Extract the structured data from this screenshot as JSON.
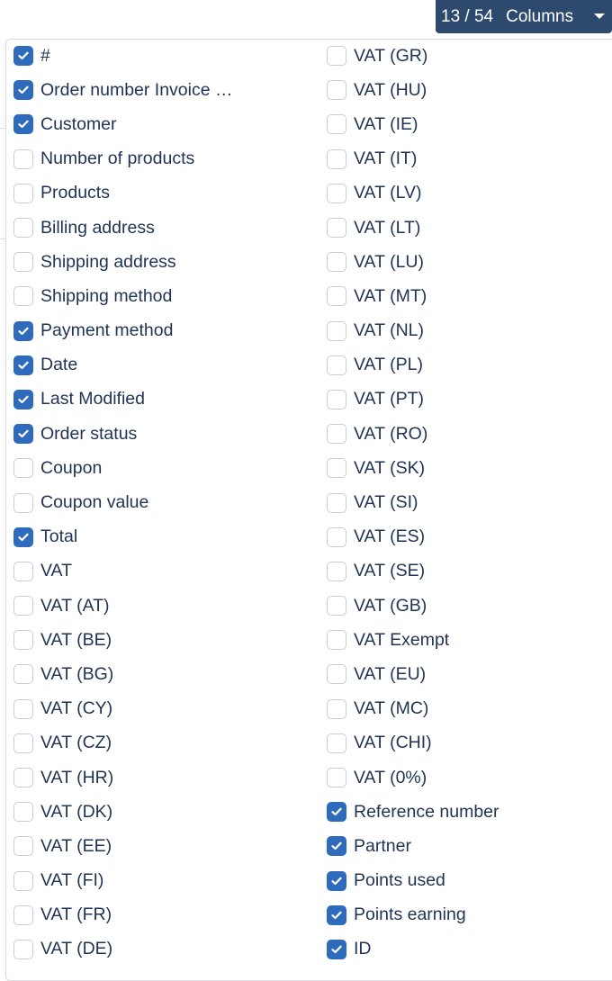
{
  "columns_button": {
    "selected": "13",
    "total": "54",
    "separator": "/",
    "label": "Columns",
    "caret_icon": "caret-down-icon"
  },
  "colors": {
    "checkbox_checked": "#2f6bbd",
    "button_bg": "#2d4a6e",
    "text": "#1f3354"
  },
  "left_column": [
    {
      "label": "#",
      "checked": true
    },
    {
      "label": "Order number Invoice …",
      "checked": true
    },
    {
      "label": "Customer",
      "checked": true
    },
    {
      "label": "Number of products",
      "checked": false
    },
    {
      "label": "Products",
      "checked": false
    },
    {
      "label": "Billing address",
      "checked": false
    },
    {
      "label": "Shipping address",
      "checked": false
    },
    {
      "label": "Shipping method",
      "checked": false
    },
    {
      "label": "Payment method",
      "checked": true
    },
    {
      "label": "Date",
      "checked": true
    },
    {
      "label": "Last Modified",
      "checked": true
    },
    {
      "label": "Order status",
      "checked": true
    },
    {
      "label": "Coupon",
      "checked": false
    },
    {
      "label": "Coupon value",
      "checked": false
    },
    {
      "label": "Total",
      "checked": true
    },
    {
      "label": "VAT",
      "checked": false
    },
    {
      "label": "VAT (AT)",
      "checked": false
    },
    {
      "label": "VAT (BE)",
      "checked": false
    },
    {
      "label": "VAT (BG)",
      "checked": false
    },
    {
      "label": "VAT (CY)",
      "checked": false
    },
    {
      "label": "VAT (CZ)",
      "checked": false
    },
    {
      "label": "VAT (HR)",
      "checked": false
    },
    {
      "label": "VAT (DK)",
      "checked": false
    },
    {
      "label": "VAT (EE)",
      "checked": false
    },
    {
      "label": "VAT (FI)",
      "checked": false
    },
    {
      "label": "VAT (FR)",
      "checked": false
    },
    {
      "label": "VAT (DE)",
      "checked": false
    }
  ],
  "right_column": [
    {
      "label": "VAT (GR)",
      "checked": false
    },
    {
      "label": "VAT (HU)",
      "checked": false
    },
    {
      "label": "VAT (IE)",
      "checked": false
    },
    {
      "label": "VAT (IT)",
      "checked": false
    },
    {
      "label": "VAT (LV)",
      "checked": false
    },
    {
      "label": "VAT (LT)",
      "checked": false
    },
    {
      "label": "VAT (LU)",
      "checked": false
    },
    {
      "label": "VAT (MT)",
      "checked": false
    },
    {
      "label": "VAT (NL)",
      "checked": false
    },
    {
      "label": "VAT (PL)",
      "checked": false
    },
    {
      "label": "VAT (PT)",
      "checked": false
    },
    {
      "label": "VAT (RO)",
      "checked": false
    },
    {
      "label": "VAT (SK)",
      "checked": false
    },
    {
      "label": "VAT (SI)",
      "checked": false
    },
    {
      "label": "VAT (ES)",
      "checked": false
    },
    {
      "label": "VAT (SE)",
      "checked": false
    },
    {
      "label": "VAT (GB)",
      "checked": false
    },
    {
      "label": "VAT Exempt",
      "checked": false
    },
    {
      "label": "VAT (EU)",
      "checked": false
    },
    {
      "label": "VAT (MC)",
      "checked": false
    },
    {
      "label": "VAT (CHI)",
      "checked": false
    },
    {
      "label": "VAT (0%)",
      "checked": false
    },
    {
      "label": "Reference number",
      "checked": true
    },
    {
      "label": "Partner",
      "checked": true
    },
    {
      "label": "Points used",
      "checked": true
    },
    {
      "label": "Points earning",
      "checked": true
    },
    {
      "label": "ID",
      "checked": true
    }
  ]
}
